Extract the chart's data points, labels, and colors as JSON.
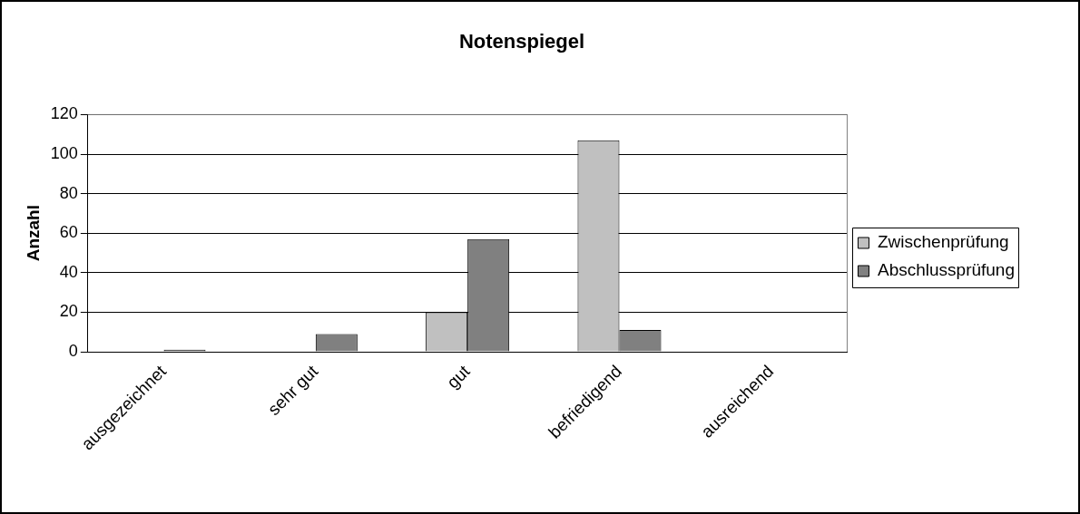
{
  "chart_data": {
    "type": "bar",
    "title": "Notenspiegel",
    "ylabel": "Anzahl",
    "categories": [
      "ausgezeichnet",
      "sehr gut",
      "gut",
      "befriedigend",
      "ausreichend"
    ],
    "series": [
      {
        "name": "Zwischenprüfung",
        "color": "#c0c0c0",
        "values": [
          0,
          0,
          20,
          107,
          0
        ]
      },
      {
        "name": "Abschlussprüfung",
        "color": "#808080",
        "values": [
          1,
          9,
          57,
          11,
          0
        ]
      }
    ],
    "ylim": [
      0,
      120
    ],
    "yticks": [
      0,
      20,
      40,
      60,
      80,
      100,
      120
    ],
    "grid": "y",
    "legend": "right"
  }
}
